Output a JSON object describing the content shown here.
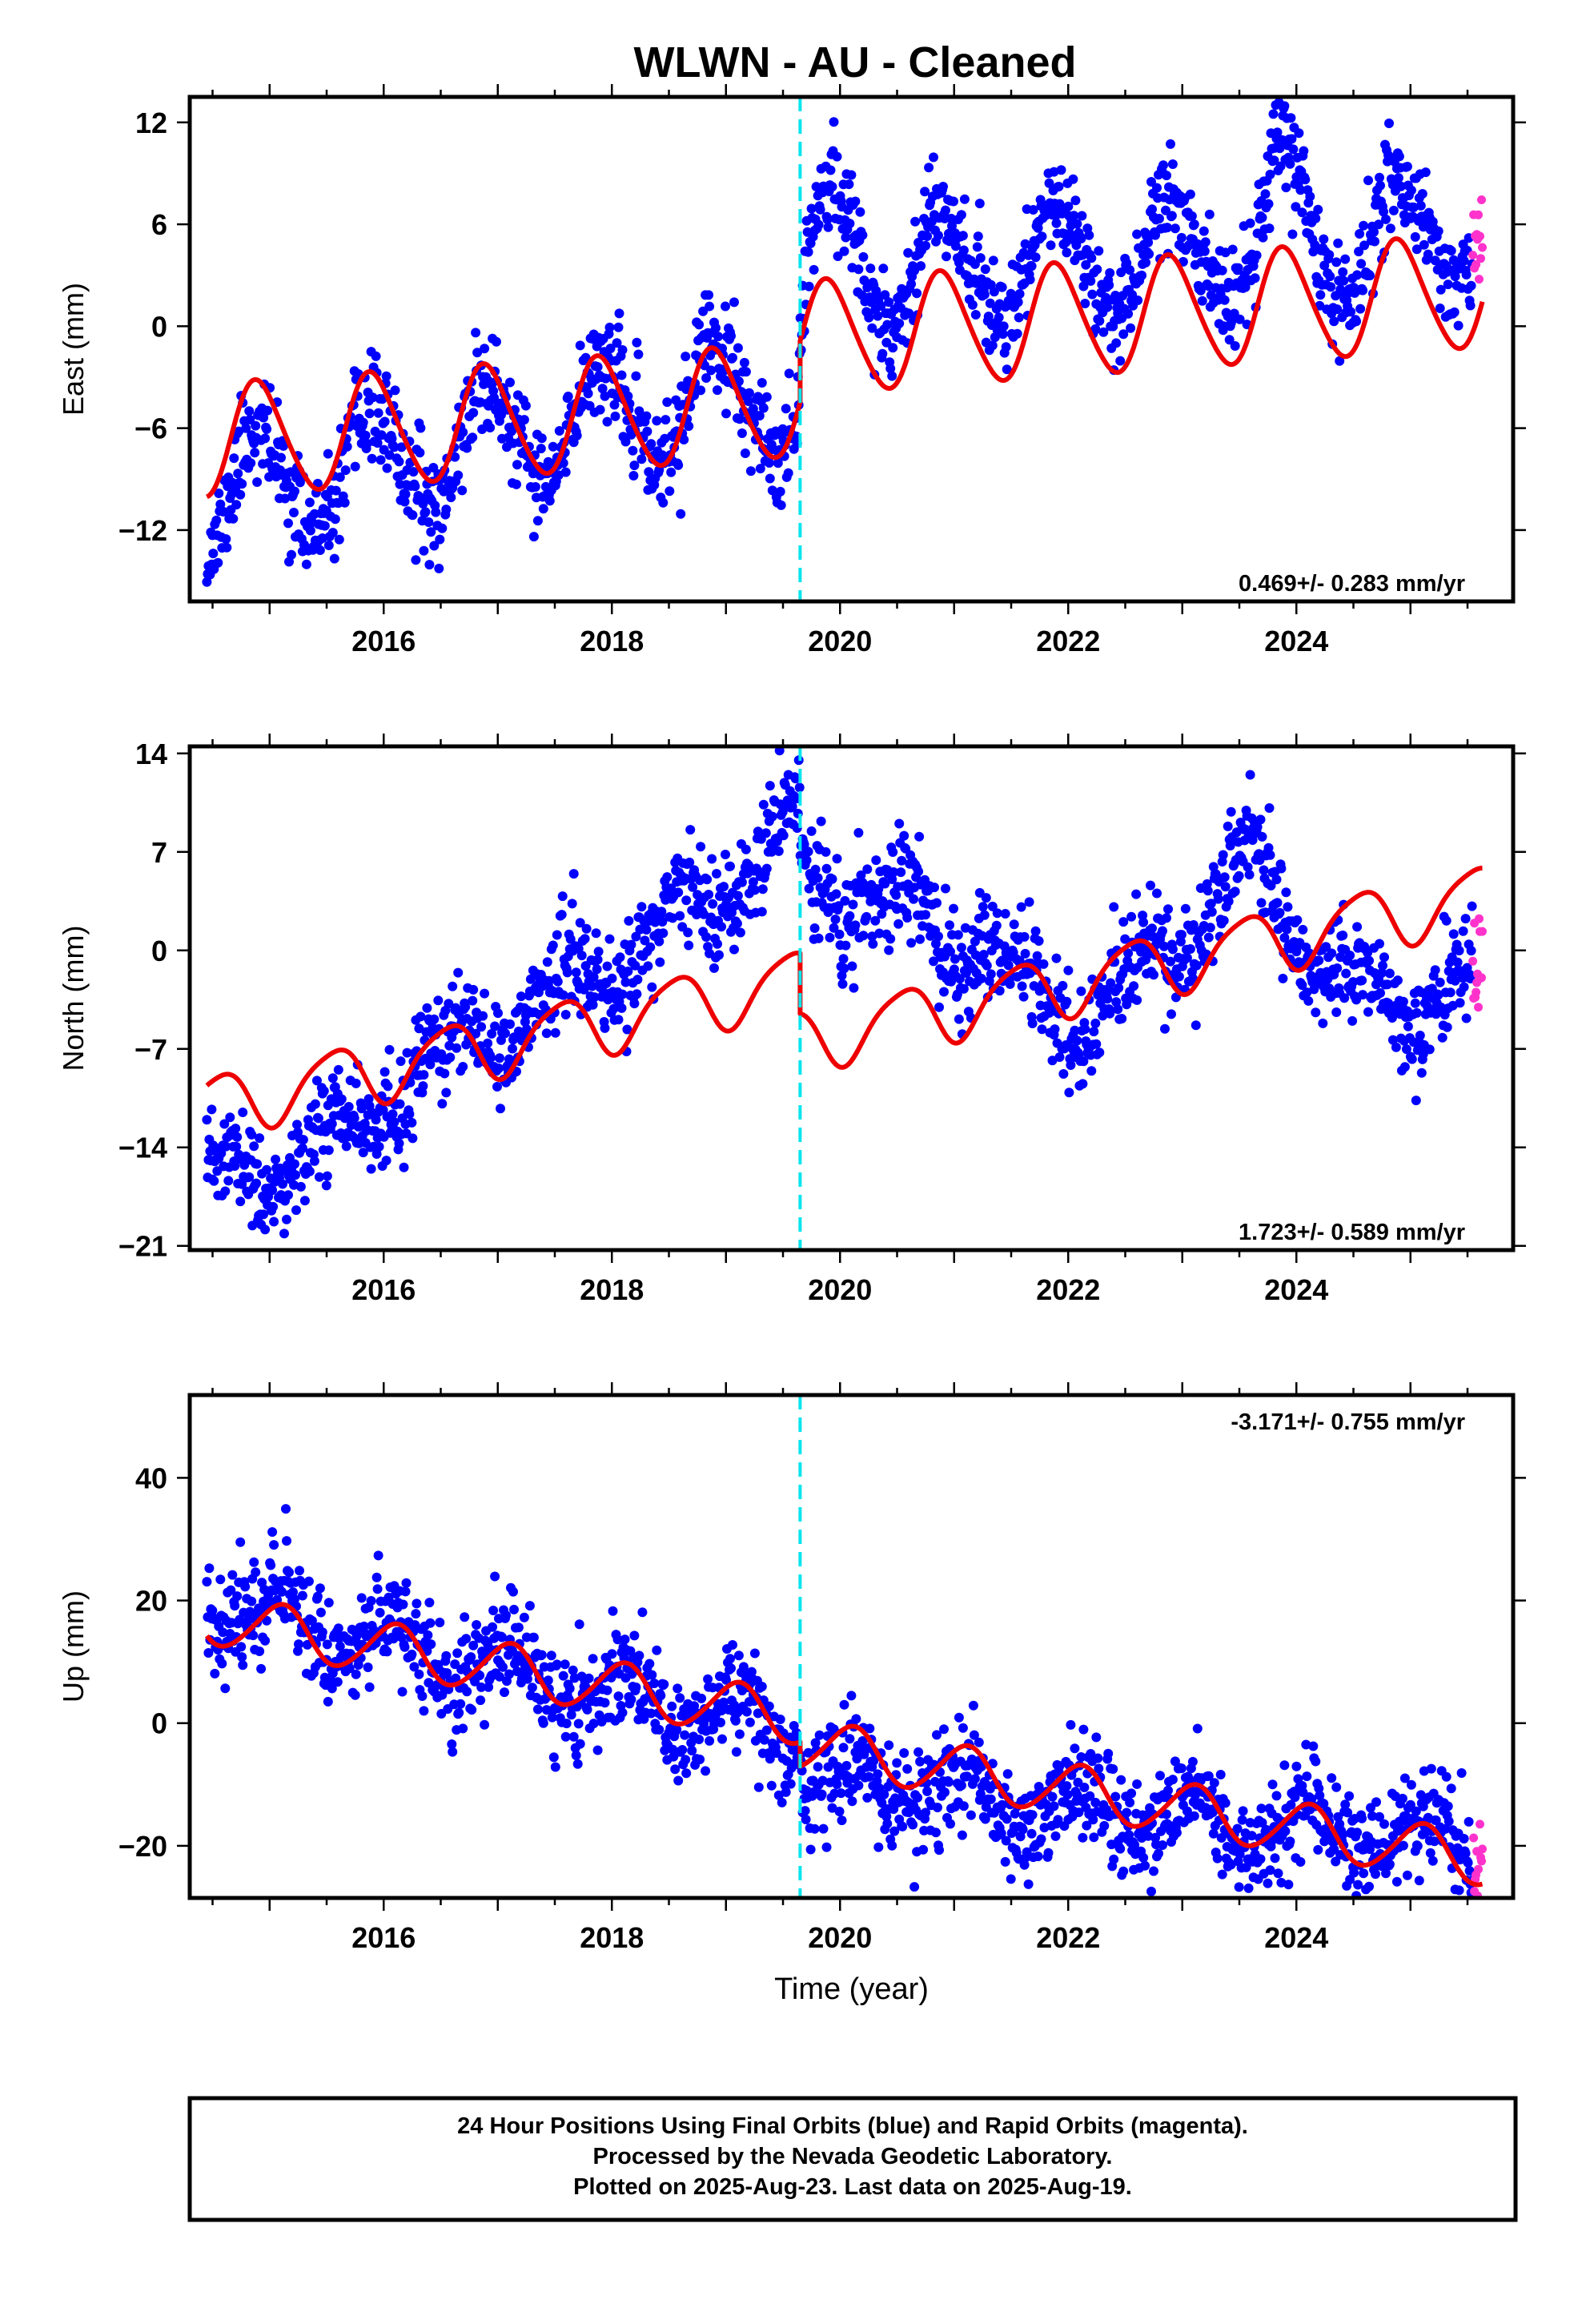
{
  "title": "WLWN  - AU - Cleaned",
  "colors": {
    "final_orbits": "#0000ff",
    "rapid_orbits": "#ff33cc",
    "model": "#ee0000",
    "event_line": "#00e5ee"
  },
  "chart_data": [
    {
      "type": "scatter",
      "component": "east",
      "ylabel": "East (mm)",
      "xlabel": "",
      "xlim": [
        2014.3,
        2025.9
      ],
      "ylim": [
        -16.2,
        13.5
      ],
      "yticks": [
        -12,
        -6,
        0,
        6,
        12
      ],
      "xticks": [
        2016,
        2018,
        2020,
        2022,
        2024
      ],
      "grid": false,
      "rate_label": "0.469+/- 0.283 mm/yr",
      "event_line_x": 2019.65,
      "data_range": [
        2014.45,
        2025.63
      ],
      "rapid_start": 2025.54,
      "noise": 1.5,
      "n_points": 1600,
      "seed": 11,
      "model": {
        "segments": [
          {
            "from": 2014.45,
            "to": 2019.65,
            "offset": -4.2
          },
          {
            "from": 2019.65,
            "to": 2025.63,
            "offset": -0.6
          }
        ],
        "rate": 0.469,
        "t0": 2020,
        "annual_amp": 3.3,
        "annual_peak": 0.9,
        "semi_amp": 0.35,
        "semi_peak": 0.3,
        "resid_points": {
          "x": [
            2014.45,
            2016.0,
            2018.0,
            2019.0,
            2019.6,
            2019.7,
            2020.5,
            2022.0,
            2023.5,
            2024.5,
            2025.63
          ],
          "y": [
            -3.3,
            -2.0,
            0.0,
            0.4,
            0.0,
            3.5,
            4.0,
            3.6,
            3.5,
            3.6,
            4.2
          ]
        },
        "resid_noise": [
          {
            "from": 2019.7,
            "to": 2020.3,
            "add": 2.2
          },
          {
            "from": 2023.6,
            "to": 2024.2,
            "add": 2.6
          }
        ]
      }
    },
    {
      "type": "scatter",
      "component": "north",
      "ylabel": "North (mm)",
      "xlabel": "",
      "xlim": [
        2014.3,
        2025.9
      ],
      "ylim": [
        -21.3,
        14.5
      ],
      "yticks": [
        -21,
        -14,
        -7,
        0,
        7,
        14
      ],
      "xticks": [
        2016,
        2018,
        2020,
        2022,
        2024
      ],
      "grid": false,
      "rate_label": "1.723+/- 0.589 mm/yr",
      "event_line_x": 2019.65,
      "data_range": [
        2014.45,
        2025.63
      ],
      "rapid_start": 2025.54,
      "noise": 1.8,
      "n_points": 1600,
      "seed": 23,
      "model": {
        "segments": [
          {
            "from": 2014.45,
            "to": 2019.65,
            "offset": -1.5
          },
          {
            "from": 2019.65,
            "to": 2025.63,
            "offset": -5.8
          }
        ],
        "rate": 1.723,
        "t0": 2020,
        "annual_amp": 2.2,
        "annual_peak": 0.55,
        "semi_amp": 0.4,
        "semi_peak": 0.25,
        "resid_points": {
          "x": [
            2014.45,
            2015.5,
            2016.2,
            2017.5,
            2018.5,
            2019.6,
            2019.7,
            2020.8,
            2021.5,
            2022.2,
            2023.6,
            2024.5,
            2025.63
          ],
          "y": [
            -6.0,
            -4.5,
            -1.5,
            2.5,
            5.5,
            10.5,
            11.5,
            6.5,
            1.5,
            -3.0,
            5.5,
            -5.5,
            -7.0
          ]
        },
        "resid_noise": []
      }
    },
    {
      "type": "scatter",
      "component": "up",
      "ylabel": "Up (mm)",
      "xlabel": "Time (year)",
      "xlim": [
        2014.3,
        2025.9
      ],
      "ylim": [
        -28.5,
        53.5
      ],
      "yticks": [
        -20,
        0,
        20,
        40
      ],
      "xticks": [
        2016,
        2018,
        2020,
        2022,
        2024
      ],
      "grid": false,
      "rate_label": "-3.171+/- 0.755 mm/yr",
      "event_line_x": 2019.65,
      "data_range": [
        2014.45,
        2025.63
      ],
      "rapid_start": 2025.54,
      "noise": 4.2,
      "n_points": 1600,
      "seed": 37,
      "model": {
        "segments": [
          {
            "from": 2014.45,
            "to": 2019.65,
            "offset": -0.5
          },
          {
            "from": 2019.65,
            "to": 2025.63,
            "offset": -4.5
          }
        ],
        "rate": -3.171,
        "t0": 2020,
        "annual_amp": 4.2,
        "annual_peak": 0.1,
        "semi_amp": 0.4,
        "semi_peak": 0.2,
        "resid_points": {
          "x": [
            2014.45,
            2016.0,
            2018.0,
            2019.6,
            2019.7,
            2022.0,
            2025.63
          ],
          "y": [
            4.0,
            1.0,
            -1.0,
            -2.0,
            -5.0,
            -3.0,
            2.5
          ]
        },
        "resid_noise": []
      }
    }
  ],
  "footer": {
    "lines": [
      "24 Hour Positions Using Final Orbits (blue) and Rapid Orbits (magenta).",
      "Processed by the Nevada Geodetic Laboratory.",
      "Plotted on 2025-Aug-23. Last data on 2025-Aug-19."
    ]
  }
}
